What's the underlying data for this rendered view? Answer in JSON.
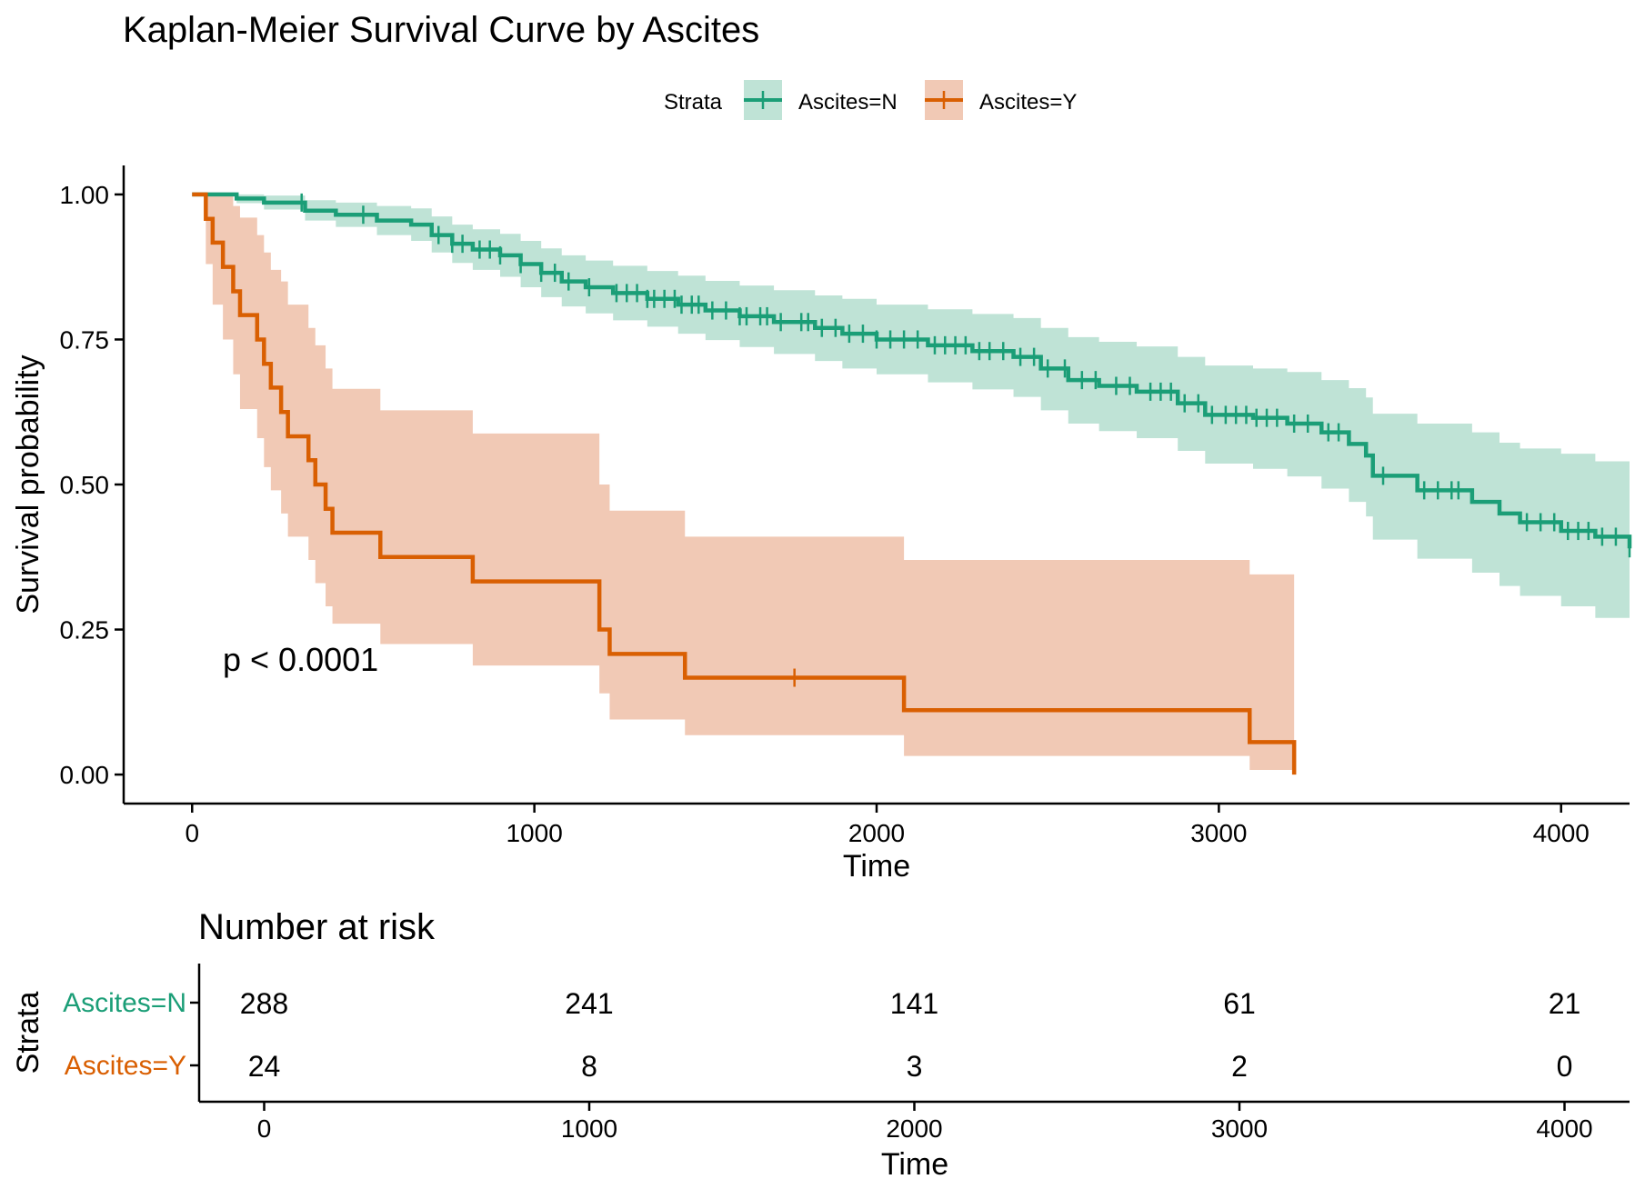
{
  "chart_data": [
    {
      "type": "line",
      "subtype": "kaplan-meier",
      "title": "Kaplan-Meier Survival Curve by Ascites",
      "xlabel": "Time",
      "ylabel": "Survival probability",
      "xlim": [
        -200,
        4200
      ],
      "ylim": [
        -0.05,
        1.05
      ],
      "x_ticks": [
        0,
        1000,
        2000,
        3000,
        4000
      ],
      "y_ticks": [
        0,
        0.25,
        0.5,
        0.75,
        1
      ],
      "y_tick_labels": [
        "0.00",
        "0.25",
        "0.50",
        "0.75",
        "1.00"
      ],
      "grid": false,
      "legend": {
        "title": "Strata",
        "position": "top",
        "entries": [
          "Ascites=N",
          "Ascites=Y"
        ]
      },
      "annotation": "p < 0.0001",
      "series": [
        {
          "name": "Ascites=N",
          "color": "#1b9e77",
          "band_color": "#bfe3d6",
          "steps": [
            [
              0,
              1.0
            ],
            [
              130,
              0.993
            ],
            [
              210,
              0.986
            ],
            [
              330,
              0.972
            ],
            [
              420,
              0.965
            ],
            [
              540,
              0.955
            ],
            [
              640,
              0.948
            ],
            [
              700,
              0.93
            ],
            [
              760,
              0.915
            ],
            [
              820,
              0.905
            ],
            [
              900,
              0.895
            ],
            [
              960,
              0.88
            ],
            [
              1020,
              0.865
            ],
            [
              1080,
              0.85
            ],
            [
              1150,
              0.84
            ],
            [
              1230,
              0.83
            ],
            [
              1330,
              0.82
            ],
            [
              1420,
              0.81
            ],
            [
              1500,
              0.8
            ],
            [
              1600,
              0.79
            ],
            [
              1700,
              0.78
            ],
            [
              1820,
              0.77
            ],
            [
              1900,
              0.76
            ],
            [
              2000,
              0.75
            ],
            [
              2150,
              0.74
            ],
            [
              2280,
              0.73
            ],
            [
              2400,
              0.72
            ],
            [
              2480,
              0.7
            ],
            [
              2560,
              0.68
            ],
            [
              2650,
              0.67
            ],
            [
              2760,
              0.66
            ],
            [
              2880,
              0.64
            ],
            [
              2960,
              0.62
            ],
            [
              3100,
              0.615
            ],
            [
              3200,
              0.605
            ],
            [
              3300,
              0.59
            ],
            [
              3380,
              0.57
            ],
            [
              3430,
              0.55
            ],
            [
              3450,
              0.515
            ],
            [
              3580,
              0.49
            ],
            [
              3740,
              0.47
            ],
            [
              3820,
              0.45
            ],
            [
              3880,
              0.435
            ],
            [
              4000,
              0.42
            ],
            [
              4100,
              0.41
            ],
            [
              4200,
              0.39
            ]
          ],
          "lower": [
            [
              0,
              1.0
            ],
            [
              130,
              0.985
            ],
            [
              210,
              0.974
            ],
            [
              330,
              0.955
            ],
            [
              420,
              0.944
            ],
            [
              540,
              0.93
            ],
            [
              640,
              0.92
            ],
            [
              700,
              0.9
            ],
            [
              760,
              0.882
            ],
            [
              820,
              0.87
            ],
            [
              900,
              0.858
            ],
            [
              960,
              0.84
            ],
            [
              1020,
              0.823
            ],
            [
              1080,
              0.807
            ],
            [
              1150,
              0.795
            ],
            [
              1230,
              0.783
            ],
            [
              1330,
              0.772
            ],
            [
              1420,
              0.76
            ],
            [
              1500,
              0.749
            ],
            [
              1600,
              0.737
            ],
            [
              1700,
              0.725
            ],
            [
              1820,
              0.713
            ],
            [
              1900,
              0.7
            ],
            [
              2000,
              0.69
            ],
            [
              2150,
              0.676
            ],
            [
              2280,
              0.664
            ],
            [
              2400,
              0.651
            ],
            [
              2480,
              0.628
            ],
            [
              2560,
              0.605
            ],
            [
              2650,
              0.592
            ],
            [
              2760,
              0.58
            ],
            [
              2880,
              0.558
            ],
            [
              2960,
              0.536
            ],
            [
              3100,
              0.527
            ],
            [
              3200,
              0.514
            ],
            [
              3300,
              0.493
            ],
            [
              3380,
              0.47
            ],
            [
              3430,
              0.445
            ],
            [
              3450,
              0.405
            ],
            [
              3580,
              0.372
            ],
            [
              3740,
              0.348
            ],
            [
              3820,
              0.325
            ],
            [
              3880,
              0.308
            ],
            [
              4000,
              0.29
            ],
            [
              4100,
              0.27
            ],
            [
              4200,
              0.24
            ]
          ],
          "upper": [
            [
              0,
              1.0
            ],
            [
              130,
              1.0
            ],
            [
              210,
              0.998
            ],
            [
              330,
              0.99
            ],
            [
              420,
              0.986
            ],
            [
              540,
              0.98
            ],
            [
              640,
              0.976
            ],
            [
              700,
              0.962
            ],
            [
              760,
              0.948
            ],
            [
              820,
              0.94
            ],
            [
              900,
              0.932
            ],
            [
              960,
              0.92
            ],
            [
              1020,
              0.907
            ],
            [
              1080,
              0.895
            ],
            [
              1150,
              0.886
            ],
            [
              1230,
              0.877
            ],
            [
              1330,
              0.868
            ],
            [
              1420,
              0.86
            ],
            [
              1500,
              0.851
            ],
            [
              1600,
              0.843
            ],
            [
              1700,
              0.835
            ],
            [
              1820,
              0.826
            ],
            [
              1900,
              0.82
            ],
            [
              2000,
              0.81
            ],
            [
              2150,
              0.802
            ],
            [
              2280,
              0.794
            ],
            [
              2400,
              0.787
            ],
            [
              2480,
              0.77
            ],
            [
              2560,
              0.754
            ],
            [
              2650,
              0.746
            ],
            [
              2760,
              0.738
            ],
            [
              2880,
              0.72
            ],
            [
              2960,
              0.705
            ],
            [
              3100,
              0.7
            ],
            [
              3200,
              0.694
            ],
            [
              3300,
              0.68
            ],
            [
              3380,
              0.666
            ],
            [
              3430,
              0.65
            ],
            [
              3450,
              0.622
            ],
            [
              3580,
              0.605
            ],
            [
              3740,
              0.59
            ],
            [
              3820,
              0.572
            ],
            [
              3880,
              0.562
            ],
            [
              4000,
              0.553
            ],
            [
              4100,
              0.54
            ],
            [
              4200,
              0.52
            ]
          ],
          "censor_times": [
            320,
            500,
            720,
            760,
            790,
            840,
            870,
            900,
            960,
            1020,
            1060,
            1100,
            1160,
            1240,
            1270,
            1300,
            1330,
            1350,
            1380,
            1410,
            1430,
            1460,
            1480,
            1520,
            1560,
            1600,
            1620,
            1660,
            1680,
            1720,
            1780,
            1800,
            1840,
            1880,
            1920,
            1960,
            2000,
            2040,
            2080,
            2120,
            2170,
            2200,
            2230,
            2260,
            2300,
            2330,
            2370,
            2420,
            2460,
            2500,
            2550,
            2600,
            2640,
            2700,
            2740,
            2800,
            2830,
            2860,
            2900,
            2940,
            2980,
            3020,
            3050,
            3080,
            3110,
            3140,
            3170,
            3220,
            3260,
            3320,
            3350,
            3480,
            3600,
            3640,
            3680,
            3700,
            3900,
            3940,
            3980,
            4020,
            4050,
            4080,
            4120,
            4160,
            4200
          ]
        },
        {
          "name": "Ascites=Y",
          "color": "#d95f02",
          "band_color": "#f1c9b5",
          "steps": [
            [
              0,
              1.0
            ],
            [
              40,
              0.958
            ],
            [
              60,
              0.917
            ],
            [
              90,
              0.875
            ],
            [
              120,
              0.833
            ],
            [
              140,
              0.792
            ],
            [
              190,
              0.75
            ],
            [
              210,
              0.708
            ],
            [
              230,
              0.667
            ],
            [
              260,
              0.625
            ],
            [
              280,
              0.583
            ],
            [
              340,
              0.542
            ],
            [
              360,
              0.5
            ],
            [
              390,
              0.458
            ],
            [
              410,
              0.417
            ],
            [
              550,
              0.375
            ],
            [
              820,
              0.333
            ],
            [
              1190,
              0.25
            ],
            [
              1220,
              0.208
            ],
            [
              1440,
              0.167
            ],
            [
              2080,
              0.111
            ],
            [
              3090,
              0.056
            ],
            [
              3220,
              0.0
            ]
          ],
          "lower": [
            [
              0,
              1.0
            ],
            [
              40,
              0.88
            ],
            [
              60,
              0.81
            ],
            [
              90,
              0.75
            ],
            [
              120,
              0.69
            ],
            [
              140,
              0.63
            ],
            [
              190,
              0.58
            ],
            [
              210,
              0.53
            ],
            [
              230,
              0.49
            ],
            [
              260,
              0.45
            ],
            [
              280,
              0.41
            ],
            [
              340,
              0.37
            ],
            [
              360,
              0.33
            ],
            [
              390,
              0.29
            ],
            [
              410,
              0.26
            ],
            [
              550,
              0.225
            ],
            [
              820,
              0.188
            ],
            [
              1190,
              0.14
            ],
            [
              1220,
              0.095
            ],
            [
              1440,
              0.068
            ],
            [
              2080,
              0.032
            ],
            [
              3090,
              0.008
            ],
            [
              3220,
              0.0
            ]
          ],
          "upper": [
            [
              0,
              1.0
            ],
            [
              40,
              1.0
            ],
            [
              60,
              1.0
            ],
            [
              90,
              1.0
            ],
            [
              120,
              0.98
            ],
            [
              140,
              0.96
            ],
            [
              190,
              0.93
            ],
            [
              210,
              0.9
            ],
            [
              230,
              0.87
            ],
            [
              260,
              0.85
            ],
            [
              280,
              0.81
            ],
            [
              340,
              0.77
            ],
            [
              360,
              0.74
            ],
            [
              390,
              0.7
            ],
            [
              410,
              0.665
            ],
            [
              550,
              0.628
            ],
            [
              820,
              0.588
            ],
            [
              1190,
              0.5
            ],
            [
              1220,
              0.455
            ],
            [
              1440,
              0.41
            ],
            [
              2080,
              0.37
            ],
            [
              3090,
              0.345
            ],
            [
              3220,
              0.345
            ]
          ],
          "censor_times": [
            1760
          ]
        }
      ]
    },
    {
      "type": "table",
      "title": "Number at risk",
      "xlabel": "Time",
      "ylabel": "Strata",
      "xlim": [
        -200,
        4200
      ],
      "x_ticks": [
        0,
        1000,
        2000,
        3000,
        4000
      ],
      "rows": [
        {
          "name": "Ascites=N",
          "color": "#1b9e77",
          "values": [
            288,
            241,
            141,
            61,
            21
          ]
        },
        {
          "name": "Ascites=Y",
          "color": "#d95f02",
          "values": [
            24,
            8,
            3,
            2,
            0
          ]
        }
      ]
    }
  ]
}
